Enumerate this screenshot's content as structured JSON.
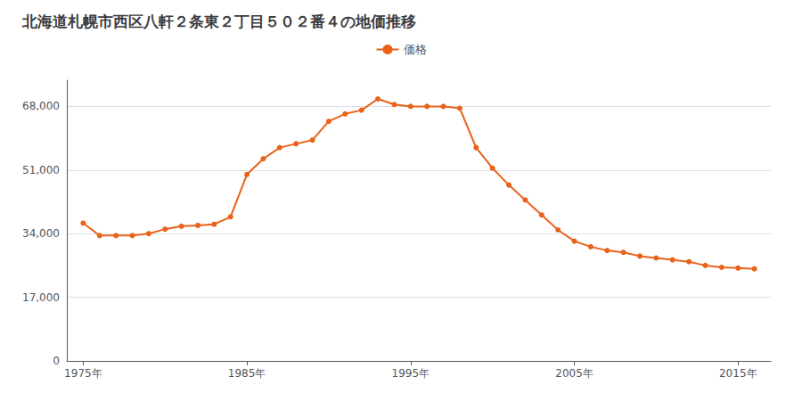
{
  "chart_data": {
    "type": "line",
    "title": "北海道札幌市西区八軒２条東２丁目５０２番４の地価推移",
    "x": [
      1975,
      1976,
      1977,
      1978,
      1979,
      1980,
      1981,
      1982,
      1983,
      1984,
      1985,
      1986,
      1987,
      1988,
      1989,
      1990,
      1991,
      1992,
      1993,
      1994,
      1995,
      1996,
      1997,
      1998,
      1999,
      2000,
      2001,
      2002,
      2003,
      2004,
      2005,
      2006,
      2007,
      2008,
      2009,
      2010,
      2011,
      2012,
      2013,
      2014,
      2015,
      2016
    ],
    "series": [
      {
        "name": "価格",
        "color": "#E8621A",
        "marker": "circle",
        "values": [
          36800,
          33500,
          33500,
          33500,
          34000,
          35200,
          36000,
          36200,
          36500,
          38500,
          49800,
          54000,
          57000,
          58000,
          59000,
          64000,
          66000,
          67000,
          70000,
          68500,
          68000,
          68000,
          68000,
          67500,
          57000,
          51500,
          47000,
          43000,
          39000,
          35000,
          32000,
          30500,
          29500,
          29000,
          28000,
          27500,
          27000,
          26500,
          25500,
          25000,
          24800,
          24600
        ]
      }
    ],
    "xlim": [
      1974,
      2017
    ],
    "xticks": [
      {
        "value": 1975,
        "label": "1975年"
      },
      {
        "value": 1985,
        "label": "1985年"
      },
      {
        "value": 1995,
        "label": "1995年"
      },
      {
        "value": 2005,
        "label": "2005年"
      },
      {
        "value": 2015,
        "label": "2015年"
      }
    ],
    "ylim": [
      0,
      75000
    ],
    "yticks": [
      0,
      {
        "value": 17000,
        "label": "17,000"
      },
      {
        "value": 34000,
        "label": "34,000"
      },
      {
        "value": 51000,
        "label": "51,000"
      },
      {
        "value": 68000,
        "label": "68,000"
      }
    ],
    "grid": true,
    "legend": "top"
  }
}
